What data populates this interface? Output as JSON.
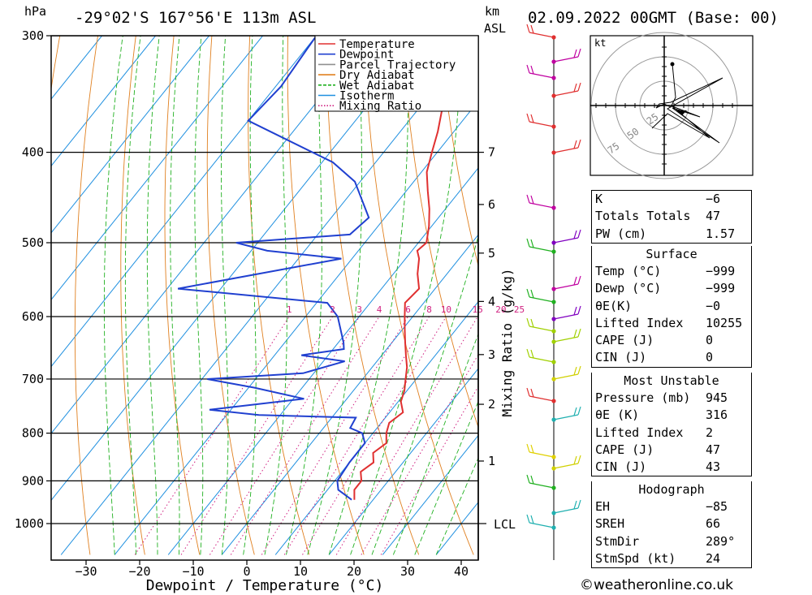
{
  "header": {
    "pressure_unit": "hPa",
    "location": "-29°02'S 167°56'E 113m ASL",
    "km_unit": "km",
    "asl": "ASL",
    "datetime": "02.09.2022 00GMT (Base: 00)"
  },
  "chart_data": {
    "type": "skew-t",
    "xlabel": "Dewpoint / Temperature (°C)",
    "ylabel": "hPa",
    "x_ticks": [
      -30,
      -20,
      -10,
      0,
      10,
      20,
      30,
      40
    ],
    "pressure_ticks": [
      300,
      400,
      500,
      600,
      700,
      800,
      900,
      1000
    ],
    "pressure_range": [
      300,
      1080
    ],
    "km_ticks": [
      {
        "label": "7",
        "p": 400
      },
      {
        "label": "6",
        "p": 455
      },
      {
        "label": "5",
        "p": 513
      },
      {
        "label": "4",
        "p": 578
      },
      {
        "label": "3",
        "p": 659
      },
      {
        "label": "2",
        "p": 745
      },
      {
        "label": "1",
        "p": 857
      }
    ],
    "lcl_label": "LCL",
    "lcl_p": 1000,
    "mixing_ratio_axis_label": "Mixing Ratio (g/kg)",
    "mixing_ratio_labels": [
      "1",
      "2",
      "3",
      "4",
      "6",
      "8",
      "10",
      "15",
      "20",
      "25"
    ],
    "mixing_ratio_values": [
      1,
      2,
      3,
      4,
      6,
      8,
      10,
      15,
      20,
      25
    ],
    "legend": [
      {
        "label": "Temperature",
        "color": "#e03030",
        "style": "solid"
      },
      {
        "label": "Dewpoint",
        "color": "#2040d0",
        "style": "solid"
      },
      {
        "label": "Parcel Trajectory",
        "color": "#909090",
        "style": "solid"
      },
      {
        "label": "Dry Adiabat",
        "color": "#e08020",
        "style": "solid"
      },
      {
        "label": "Wet Adiabat",
        "color": "#20b020",
        "style": "dashed"
      },
      {
        "label": "Isotherm",
        "color": "#2090e0",
        "style": "solid"
      },
      {
        "label": "Mixing Ratio",
        "color": "#d02080",
        "style": "dotted"
      }
    ],
    "temperature": [
      {
        "p": 943,
        "t": 16.5
      },
      {
        "p": 920,
        "t": 15.0
      },
      {
        "p": 900,
        "t": 15.0
      },
      {
        "p": 880,
        "t": 13.5
      },
      {
        "p": 860,
        "t": 14.5
      },
      {
        "p": 840,
        "t": 13.0
      },
      {
        "p": 820,
        "t": 14.0
      },
      {
        "p": 800,
        "t": 12.5
      },
      {
        "p": 780,
        "t": 11.5
      },
      {
        "p": 760,
        "t": 12.5
      },
      {
        "p": 740,
        "t": 10.5
      },
      {
        "p": 720,
        "t": 9.5
      },
      {
        "p": 700,
        "t": 8.0
      },
      {
        "p": 680,
        "t": 6.5
      },
      {
        "p": 660,
        "t": 4.5
      },
      {
        "p": 640,
        "t": 2.5
      },
      {
        "p": 620,
        "t": 0.5
      },
      {
        "p": 600,
        "t": -1.5
      },
      {
        "p": 580,
        "t": -3.5
      },
      {
        "p": 560,
        "t": -3.0
      },
      {
        "p": 540,
        "t": -5.5
      },
      {
        "p": 520,
        "t": -7.5
      },
      {
        "p": 510,
        "t": -9.0
      },
      {
        "p": 500,
        "t": -8.5
      },
      {
        "p": 480,
        "t": -10.5
      },
      {
        "p": 460,
        "t": -13.0
      },
      {
        "p": 440,
        "t": -16.0
      },
      {
        "p": 420,
        "t": -19.0
      },
      {
        "p": 400,
        "t": -21.0
      },
      {
        "p": 380,
        "t": -23.0
      },
      {
        "p": 360,
        "t": -25.5
      },
      {
        "p": 340,
        "t": -29.0
      },
      {
        "p": 320,
        "t": -33.0
      },
      {
        "p": 300,
        "t": -37.0
      }
    ],
    "dewpoint": [
      {
        "p": 943,
        "t": 16.0
      },
      {
        "p": 920,
        "t": 12.0
      },
      {
        "p": 900,
        "t": 10.5
      },
      {
        "p": 860,
        "t": 10.0
      },
      {
        "p": 820,
        "t": 10.0
      },
      {
        "p": 800,
        "t": 8.0
      },
      {
        "p": 790,
        "t": 5.0
      },
      {
        "p": 770,
        "t": 4.5
      },
      {
        "p": 765,
        "t": -14.0
      },
      {
        "p": 755,
        "t": -24.0
      },
      {
        "p": 735,
        "t": -8.0
      },
      {
        "p": 715,
        "t": -19.0
      },
      {
        "p": 700,
        "t": -29.0
      },
      {
        "p": 690,
        "t": -12.0
      },
      {
        "p": 670,
        "t": -6.0
      },
      {
        "p": 660,
        "t": -15.0
      },
      {
        "p": 650,
        "t": -8.0
      },
      {
        "p": 640,
        "t": -9.0
      },
      {
        "p": 600,
        "t": -14.0
      },
      {
        "p": 580,
        "t": -18.0
      },
      {
        "p": 560,
        "t": -48.0
      },
      {
        "p": 520,
        "t": -22.0
      },
      {
        "p": 510,
        "t": -37.0
      },
      {
        "p": 500,
        "t": -44.0
      },
      {
        "p": 490,
        "t": -24.0
      },
      {
        "p": 470,
        "t": -23.0
      },
      {
        "p": 430,
        "t": -31.0
      },
      {
        "p": 410,
        "t": -38.0
      },
      {
        "p": 370,
        "t": -60.0
      },
      {
        "p": 340,
        "t": -59.0
      },
      {
        "p": 300,
        "t": -60.0
      }
    ]
  },
  "hodograph": {
    "unit": "kt",
    "ring_labels": [
      "25",
      "50",
      "75"
    ]
  },
  "indices": {
    "rows": [
      {
        "label": "K",
        "value": "-6"
      },
      {
        "label": "Totals Totals",
        "value": "47"
      },
      {
        "label": "PW (cm)",
        "value": "1.57"
      }
    ]
  },
  "surface": {
    "title": "Surface",
    "rows": [
      {
        "label": "Temp (°C)",
        "value": "-999"
      },
      {
        "label": "Dewp (°C)",
        "value": "-999"
      },
      {
        "label": "θE(K)",
        "value": "-0"
      },
      {
        "label": "Lifted Index",
        "value": "10255"
      },
      {
        "label": "CAPE (J)",
        "value": "0"
      },
      {
        "label": "CIN (J)",
        "value": "0"
      }
    ]
  },
  "most_unstable": {
    "title": "Most Unstable",
    "rows": [
      {
        "label": "Pressure (mb)",
        "value": "945"
      },
      {
        "label": "θE (K)",
        "value": "316"
      },
      {
        "label": "Lifted Index",
        "value": "2"
      },
      {
        "label": "CAPE (J)",
        "value": "47"
      },
      {
        "label": "CIN (J)",
        "value": "43"
      }
    ]
  },
  "hodograph_table": {
    "title": "Hodograph",
    "rows": [
      {
        "label": "EH",
        "value": "-85"
      },
      {
        "label": "SREH",
        "value": "66"
      },
      {
        "label": "StmDir",
        "value": "289°"
      },
      {
        "label": "StmSpd (kt)",
        "value": "24"
      }
    ]
  },
  "footer": {
    "copyright": "©weatheronline.co.uk"
  }
}
